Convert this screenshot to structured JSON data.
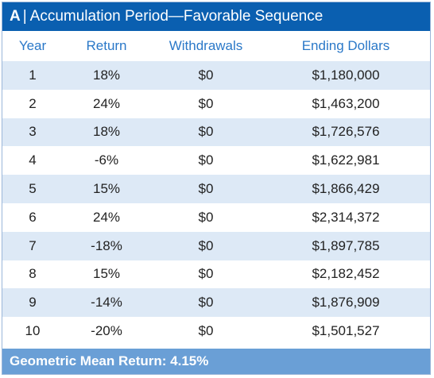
{
  "title": {
    "prefix": "A",
    "separator": "|",
    "text": "Accumulation Period—Favorable Sequence"
  },
  "columns": {
    "year": "Year",
    "return": "Return",
    "withdrawals": "Withdrawals",
    "ending": "Ending Dollars"
  },
  "rows": [
    {
      "year": "1",
      "return": "18%",
      "withdrawals": "$0",
      "ending": "$1,180,000"
    },
    {
      "year": "2",
      "return": "24%",
      "withdrawals": "$0",
      "ending": "$1,463,200"
    },
    {
      "year": "3",
      "return": "18%",
      "withdrawals": "$0",
      "ending": "$1,726,576"
    },
    {
      "year": "4",
      "return": "-6%",
      "withdrawals": "$0",
      "ending": "$1,622,981"
    },
    {
      "year": "5",
      "return": "15%",
      "withdrawals": "$0",
      "ending": "$1,866,429"
    },
    {
      "year": "6",
      "return": "24%",
      "withdrawals": "$0",
      "ending": "$2,314,372"
    },
    {
      "year": "7",
      "return": "-18%",
      "withdrawals": "$0",
      "ending": "$1,897,785"
    },
    {
      "year": "8",
      "return": "15%",
      "withdrawals": "$0",
      "ending": "$2,182,452"
    },
    {
      "year": "9",
      "return": "-14%",
      "withdrawals": "$0",
      "ending": "$1,876,909"
    },
    {
      "year": "10",
      "return": "-20%",
      "withdrawals": "$0",
      "ending": "$1,501,527"
    }
  ],
  "footer": "Geometric Mean Return: 4.15%",
  "colors": {
    "title_bg": "#0a5fb0",
    "header_text": "#2a78c8",
    "stripe": "#dde9f6",
    "footer_bg": "#6a9fd6"
  }
}
